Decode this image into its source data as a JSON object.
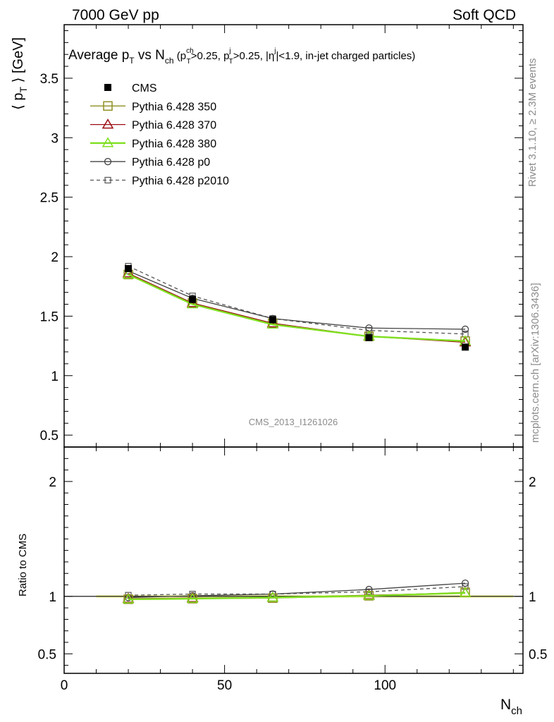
{
  "header": {
    "left": "7000 GeV pp",
    "right": "Soft QCD"
  },
  "side": {
    "rivet": "Rivet 3.1.10, ≥ 2.3M events",
    "mcplots": "mcplots.cern.ch [arXiv:1306.3436]"
  },
  "chart_data": {
    "type": "line",
    "title": {
      "main": "Average p",
      "main_sub": "T",
      "vs": " vs N",
      "vs_sub": "ch",
      "paren_open": " (p",
      "p1_sup": "ch",
      "p1_sub": "T",
      "cut1": ">0.25, p",
      "p2_sup": "j",
      "p2_sub": "T",
      "cut2": ">0.25, |η",
      "eta_sup": "j",
      "cut3": "|<1.9, in-jet charged particles)"
    },
    "ylabel": {
      "open": "⟨ p",
      "sub": "T",
      "close": " ⟩ [GeV]"
    },
    "xlabel": {
      "main": "N",
      "sub": "ch"
    },
    "ratio_ylabel": "Ratio to CMS",
    "watermark": "CMS_2013_I1261026",
    "xlim": [
      0,
      143
    ],
    "ylim": [
      0.4,
      3.95
    ],
    "ratio_ylim": [
      0.33,
      2.3
    ],
    "xticks": [
      0,
      50,
      100
    ],
    "yticks": [
      0.5,
      1,
      1.5,
      2,
      2.5,
      3,
      3.5
    ],
    "ytick_labels": [
      "0.5",
      "1",
      "1.5",
      "2",
      "2.5",
      "3",
      "3.5"
    ],
    "ratio_yticks": [
      0.5,
      1,
      2
    ],
    "ratio_ytick_labels": [
      "0.5",
      "1",
      "2"
    ],
    "x": [
      20,
      40,
      65,
      95,
      125
    ],
    "series": [
      {
        "name": "CMS",
        "color": "#000000",
        "marker": "filled-square",
        "dash": "",
        "values": [
          1.9,
          1.64,
          1.47,
          1.32,
          1.24
        ],
        "ratio": [
          1.0,
          1.0,
          1.0,
          1.0,
          1.0
        ]
      },
      {
        "name": "Pythia 6.428 350",
        "color": "#8f8f22",
        "marker": "open-square",
        "dash": "",
        "values": [
          1.85,
          1.61,
          1.44,
          1.33,
          1.29
        ],
        "ratio": [
          0.975,
          0.98,
          0.985,
          1.005,
          1.035
        ]
      },
      {
        "name": "Pythia 6.428 370",
        "color": "#9c0e14",
        "marker": "open-triangle",
        "dash": "",
        "values": [
          1.86,
          1.61,
          1.44,
          1.33,
          1.28
        ],
        "ratio": [
          0.98,
          0.985,
          0.99,
          1.01,
          1.03
        ]
      },
      {
        "name": "Pythia 6.428 380",
        "color": "#7fdf1f",
        "marker": "open-triangle",
        "dash": "",
        "values": [
          1.85,
          1.6,
          1.43,
          1.33,
          1.29
        ],
        "ratio": [
          0.975,
          0.98,
          0.99,
          1.005,
          1.03
        ]
      },
      {
        "name": "Pythia 6.428 p0",
        "color": "#444444",
        "marker": "open-circle",
        "dash": "",
        "values": [
          1.88,
          1.65,
          1.48,
          1.4,
          1.39
        ],
        "ratio": [
          0.99,
          1.005,
          1.02,
          1.06,
          1.115
        ]
      },
      {
        "name": "Pythia 6.428 p2010",
        "color": "#555555",
        "marker": "open-square-small",
        "dash": "5,4",
        "values": [
          1.92,
          1.67,
          1.48,
          1.38,
          1.35
        ],
        "ratio": [
          1.01,
          1.02,
          1.02,
          1.04,
          1.085
        ]
      }
    ],
    "legend_position": "top-left",
    "grid": false
  }
}
